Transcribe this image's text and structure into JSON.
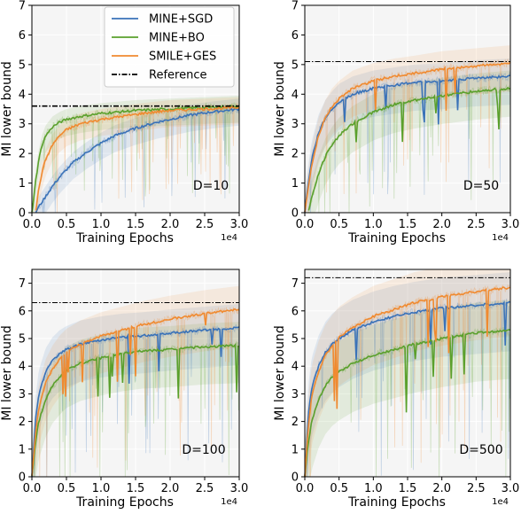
{
  "figure": {
    "x_label": "Training Epochs",
    "y_label": "MI lower bound",
    "x_exponent": "1e4",
    "legend": [
      "MINE+SGD",
      "MINE+BO",
      "SMILE+GES",
      "Reference"
    ]
  },
  "chart_data": [
    {
      "type": "line",
      "panel_label": "D=10",
      "xlabel": "Training Epochs",
      "ylabel": "MI lower bound",
      "xlim": [
        0,
        3.0
      ],
      "ylim": [
        0,
        7
      ],
      "x_ticks": [
        "0.0",
        "0.5",
        "1.0",
        "1.5",
        "2.0",
        "2.5",
        "3.0"
      ],
      "y_ticks": [
        "0",
        "1",
        "2",
        "3",
        "4",
        "5",
        "6",
        "7"
      ],
      "x_exponent": "1e4",
      "reference": 3.6,
      "series": [
        {
          "name": "MINE+SGD",
          "color": "#3a72b8",
          "x": [
            0.05,
            0.1,
            0.2,
            0.3,
            0.4,
            0.5,
            0.6,
            0.8,
            1.0,
            1.2,
            1.5,
            1.8,
            2.0,
            2.3,
            2.6,
            3.0
          ],
          "y": [
            0.0,
            0.2,
            0.55,
            0.9,
            1.2,
            1.45,
            1.7,
            2.05,
            2.35,
            2.6,
            2.85,
            3.05,
            3.15,
            3.3,
            3.4,
            3.5
          ]
        },
        {
          "name": "MINE+BO",
          "color": "#5aa02c",
          "x": [
            0.0,
            0.05,
            0.1,
            0.15,
            0.2,
            0.3,
            0.4,
            0.5,
            0.7,
            1.0,
            1.5,
            2.0,
            2.5,
            3.0
          ],
          "y": [
            0.0,
            1.0,
            1.8,
            2.3,
            2.6,
            2.9,
            3.05,
            3.15,
            3.25,
            3.35,
            3.45,
            3.5,
            3.55,
            3.6
          ]
        },
        {
          "name": "SMILE+GES",
          "color": "#f08a30",
          "x": [
            0.05,
            0.1,
            0.15,
            0.2,
            0.3,
            0.4,
            0.5,
            0.7,
            1.0,
            1.3,
            1.6,
            2.0,
            2.5,
            3.0
          ],
          "y": [
            0.0,
            0.8,
            1.4,
            1.8,
            2.3,
            2.6,
            2.8,
            3.0,
            3.15,
            3.25,
            3.35,
            3.45,
            3.5,
            3.55
          ]
        }
      ]
    },
    {
      "type": "line",
      "panel_label": "D=50",
      "xlabel": "Training Epochs",
      "ylabel": "MI lower bound",
      "xlim": [
        0,
        3.0
      ],
      "ylim": [
        0,
        7
      ],
      "x_ticks": [
        "0.0",
        "0.5",
        "1.0",
        "1.5",
        "2.0",
        "2.5",
        "3.0"
      ],
      "y_ticks": [
        "0",
        "1",
        "2",
        "3",
        "4",
        "5",
        "6",
        "7"
      ],
      "x_exponent": "1e4",
      "reference": 5.1,
      "series": [
        {
          "name": "MINE+SGD",
          "color": "#3a72b8",
          "x": [
            0.0,
            0.05,
            0.1,
            0.2,
            0.3,
            0.4,
            0.5,
            0.7,
            1.0,
            1.3,
            1.6,
            2.0,
            2.5,
            3.0
          ],
          "y": [
            0.0,
            1.0,
            1.8,
            2.7,
            3.2,
            3.5,
            3.75,
            4.0,
            4.2,
            4.3,
            4.4,
            4.45,
            4.55,
            4.6
          ]
        },
        {
          "name": "MINE+BO",
          "color": "#5aa02c",
          "x": [
            0.05,
            0.1,
            0.2,
            0.3,
            0.4,
            0.5,
            0.7,
            1.0,
            1.3,
            1.6,
            2.0,
            2.5,
            3.0
          ],
          "y": [
            0.0,
            0.5,
            1.3,
            1.9,
            2.3,
            2.6,
            3.0,
            3.4,
            3.65,
            3.8,
            3.95,
            4.1,
            4.2
          ]
        },
        {
          "name": "SMILE+GES",
          "color": "#f08a30",
          "x": [
            0.0,
            0.05,
            0.1,
            0.2,
            0.3,
            0.4,
            0.5,
            0.7,
            1.0,
            1.3,
            1.6,
            2.0,
            2.5,
            3.0
          ],
          "y": [
            0.0,
            0.8,
            1.6,
            2.6,
            3.2,
            3.6,
            3.85,
            4.2,
            4.45,
            4.6,
            4.7,
            4.85,
            4.95,
            5.05
          ]
        }
      ]
    },
    {
      "type": "line",
      "panel_label": "D=100",
      "xlabel": "Training Epochs",
      "ylabel": "MI lower bound",
      "xlim": [
        0,
        3.0
      ],
      "ylim": [
        0,
        7.5
      ],
      "x_ticks": [
        "0.0",
        "0.5",
        "1.0",
        "1.5",
        "2.0",
        "2.5",
        "3.0"
      ],
      "y_ticks": [
        "0",
        "1",
        "2",
        "3",
        "4",
        "5",
        "6",
        "7"
      ],
      "x_exponent": "1e4",
      "reference": 6.3,
      "series": [
        {
          "name": "MINE+SGD",
          "color": "#3a72b8",
          "x": [
            0.0,
            0.05,
            0.1,
            0.2,
            0.3,
            0.4,
            0.5,
            0.7,
            1.0,
            1.3,
            1.6,
            2.0,
            2.5,
            3.0
          ],
          "y": [
            0.0,
            2.0,
            3.0,
            3.8,
            4.2,
            4.45,
            4.6,
            4.8,
            4.95,
            5.05,
            5.1,
            5.2,
            5.3,
            5.4
          ]
        },
        {
          "name": "MINE+BO",
          "color": "#5aa02c",
          "x": [
            0.0,
            0.05,
            0.1,
            0.2,
            0.3,
            0.4,
            0.5,
            0.7,
            1.0,
            1.3,
            1.6,
            2.0,
            2.5,
            3.0
          ],
          "y": [
            0.0,
            1.2,
            2.0,
            2.8,
            3.3,
            3.6,
            3.85,
            4.1,
            4.3,
            4.45,
            4.55,
            4.6,
            4.7,
            4.75
          ]
        },
        {
          "name": "SMILE+GES",
          "color": "#f08a30",
          "x": [
            0.0,
            0.05,
            0.1,
            0.2,
            0.3,
            0.4,
            0.5,
            0.7,
            1.0,
            1.3,
            1.6,
            2.0,
            2.5,
            3.0
          ],
          "y": [
            0.0,
            1.5,
            2.5,
            3.4,
            3.9,
            4.25,
            4.5,
            4.8,
            5.1,
            5.3,
            5.5,
            5.7,
            5.9,
            6.05
          ]
        }
      ]
    },
    {
      "type": "line",
      "panel_label": "D=500",
      "xlabel": "Training Epochs",
      "ylabel": "MI lower bound",
      "xlim": [
        0,
        3.0
      ],
      "ylim": [
        0,
        7.5
      ],
      "x_ticks": [
        "0.0",
        "0.5",
        "1.0",
        "1.5",
        "2.0",
        "2.5",
        "3.0"
      ],
      "y_ticks": [
        "0",
        "1",
        "2",
        "3",
        "4",
        "5",
        "6",
        "7"
      ],
      "x_exponent": "1e4",
      "reference": 7.2,
      "series": [
        {
          "name": "MINE+SGD",
          "color": "#3a72b8",
          "x": [
            0.0,
            0.05,
            0.1,
            0.2,
            0.3,
            0.4,
            0.5,
            0.7,
            1.0,
            1.3,
            1.6,
            2.0,
            2.5,
            3.0
          ],
          "y": [
            0.0,
            2.2,
            3.2,
            4.0,
            4.5,
            4.8,
            5.0,
            5.3,
            5.6,
            5.8,
            5.95,
            6.1,
            6.2,
            6.3
          ]
        },
        {
          "name": "MINE+BO",
          "color": "#5aa02c",
          "x": [
            0.0,
            0.05,
            0.1,
            0.2,
            0.3,
            0.4,
            0.5,
            0.7,
            1.0,
            1.3,
            1.6,
            2.0,
            2.5,
            3.0
          ],
          "y": [
            0.0,
            1.2,
            2.0,
            2.8,
            3.3,
            3.6,
            3.8,
            4.1,
            4.4,
            4.6,
            4.8,
            5.0,
            5.2,
            5.3
          ]
        },
        {
          "name": "SMILE+GES",
          "color": "#f08a30",
          "x": [
            0.0,
            0.05,
            0.1,
            0.2,
            0.3,
            0.4,
            0.5,
            0.7,
            1.0,
            1.3,
            1.6,
            2.0,
            2.5,
            3.0
          ],
          "y": [
            0.0,
            1.8,
            2.9,
            3.8,
            4.4,
            4.75,
            5.05,
            5.4,
            5.8,
            6.05,
            6.3,
            6.5,
            6.7,
            6.85
          ]
        }
      ]
    }
  ]
}
